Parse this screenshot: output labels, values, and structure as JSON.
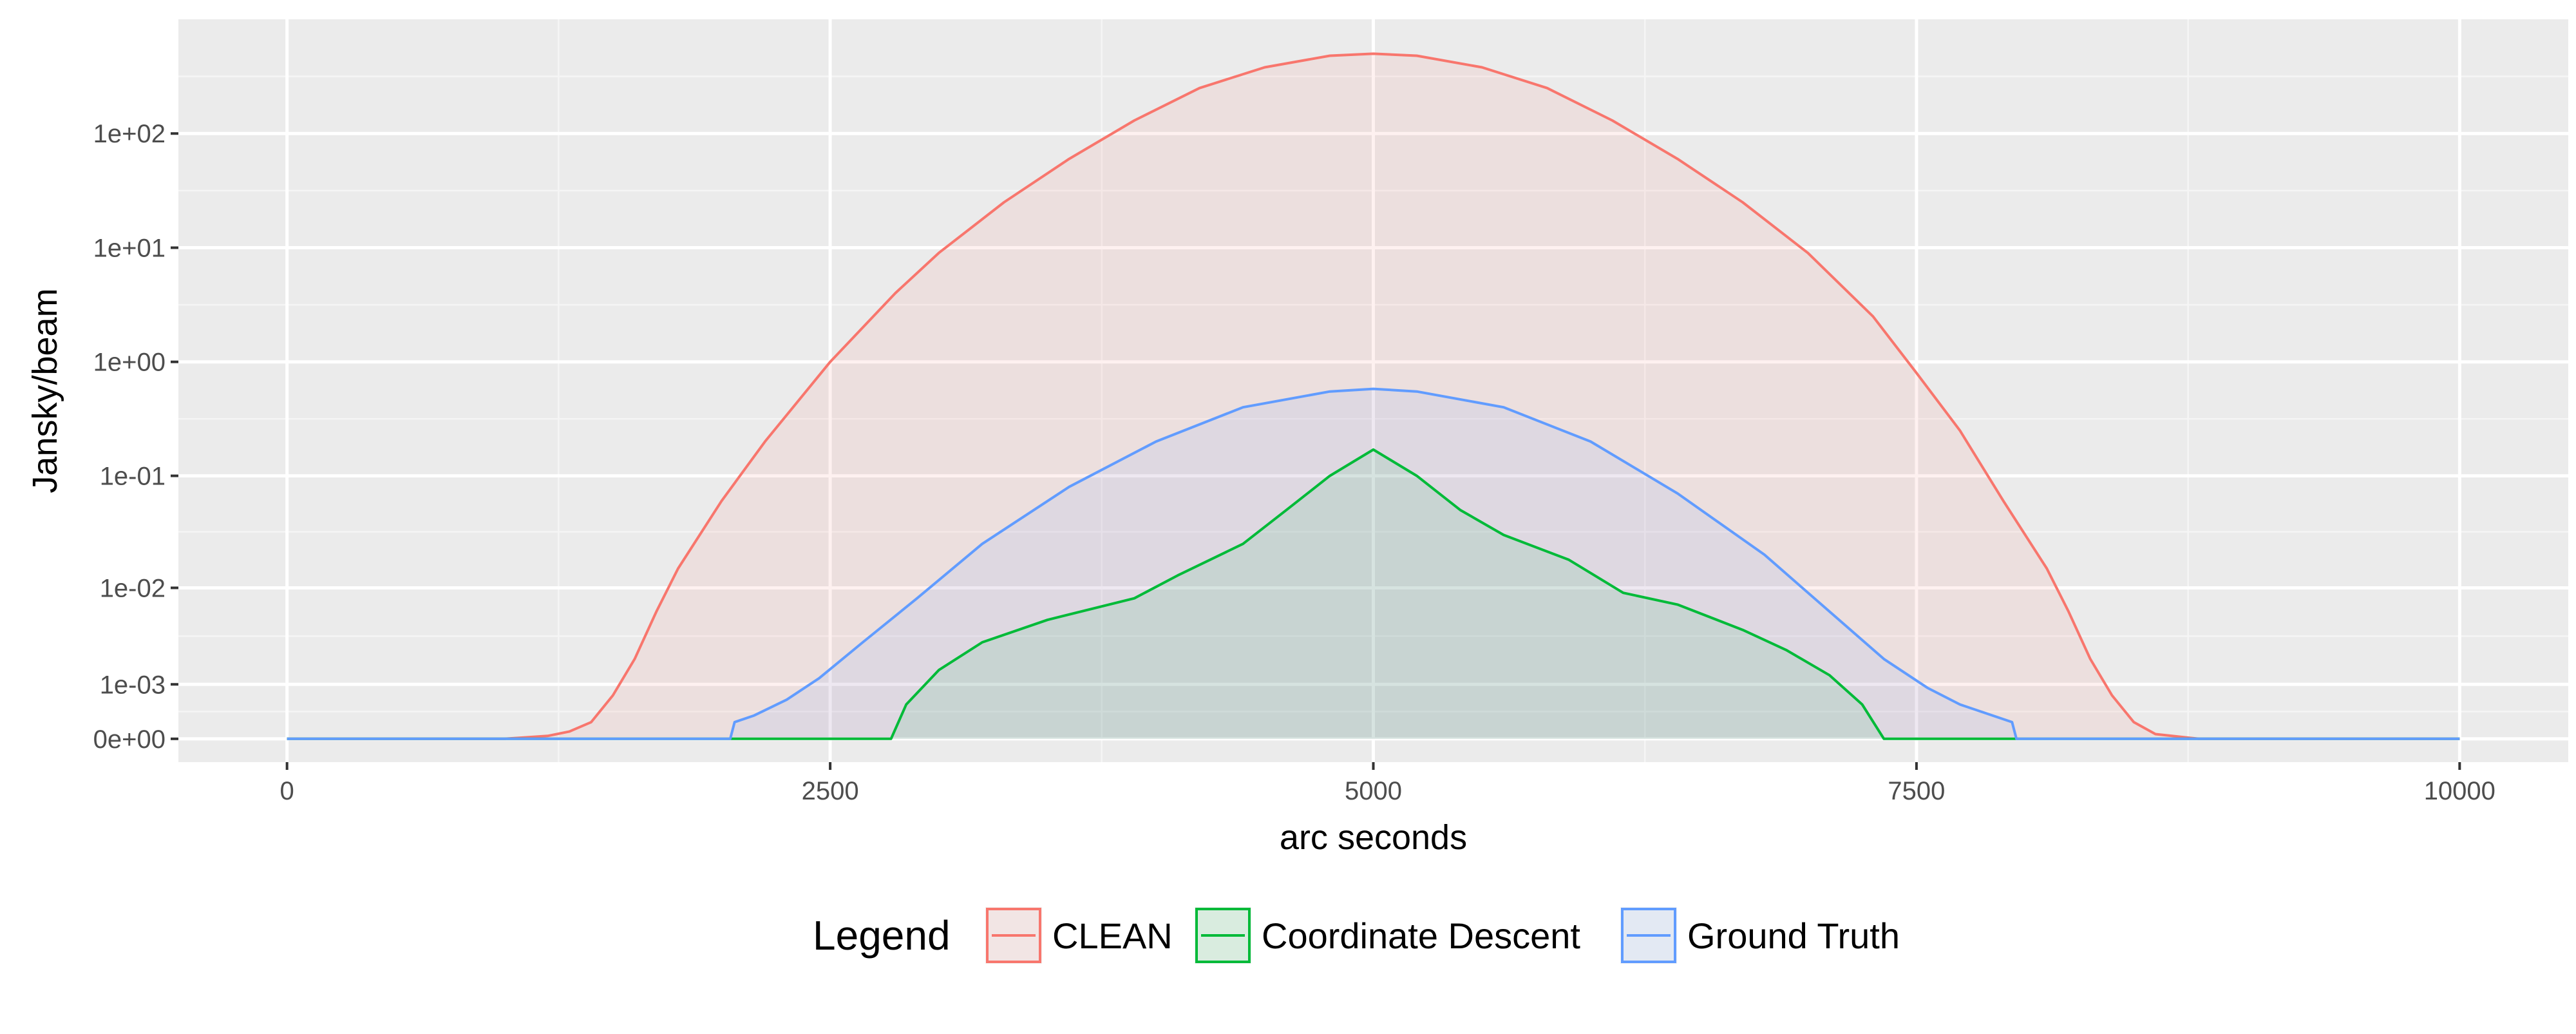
{
  "chart_data": {
    "type": "area",
    "title": "",
    "xlabel": "arc seconds",
    "ylabel": "Jansky/beam",
    "xlim": [
      -500,
      10500
    ],
    "x_ticks": [
      0,
      2500,
      5000,
      7500,
      10000
    ],
    "x_tick_labels": [
      "0",
      "2500",
      "5000",
      "7500",
      "10000"
    ],
    "y_scale": "pseudo-log",
    "y_ticks": [
      0,
      0.001,
      0.01,
      0.1,
      1,
      10,
      100
    ],
    "y_tick_labels": [
      "0e+00",
      "1e-03",
      "1e-02",
      "1e-01",
      "1e+00",
      "1e+01",
      "1e+02"
    ],
    "ylim": [
      -0.0003,
      1000
    ],
    "grid": true,
    "legend": {
      "title": "Legend",
      "placement": "bottom",
      "entries": [
        "CLEAN",
        "Coordinate Descent",
        "Ground Truth"
      ]
    },
    "series": [
      {
        "name": "CLEAN",
        "color": "#F8766D",
        "x": [
          0,
          1000,
          1200,
          1300,
          1400,
          1500,
          1600,
          1700,
          1800,
          2000,
          2200,
          2500,
          2800,
          3000,
          3300,
          3600,
          3900,
          4200,
          4500,
          4800,
          5000,
          5200,
          5500,
          5800,
          6100,
          6400,
          6700,
          7000,
          7300,
          7500,
          7700,
          7900,
          8100,
          8200,
          8300,
          8400,
          8500,
          8600,
          8800,
          10000
        ],
        "values": [
          0,
          0,
          3e-05,
          8e-05,
          0.0002,
          0.0007,
          0.002,
          0.006,
          0.015,
          0.06,
          0.2,
          1,
          4,
          9,
          25,
          60,
          130,
          250,
          380,
          480,
          500,
          480,
          380,
          250,
          130,
          60,
          25,
          9,
          2.5,
          0.8,
          0.25,
          0.06,
          0.015,
          0.006,
          0.002,
          0.0007,
          0.0002,
          5e-05,
          0,
          0
        ]
      },
      {
        "name": "Coordinate Descent",
        "color": "#00BA38",
        "x": [
          0,
          2750,
          2780,
          2850,
          3000,
          3200,
          3500,
          3900,
          4100,
          4400,
          4600,
          4800,
          5000,
          5200,
          5400,
          5600,
          5900,
          6150,
          6400,
          6700,
          6900,
          7100,
          7250,
          7350,
          10000
        ],
        "values": [
          0,
          0,
          0,
          0.0005,
          0.0015,
          0.003,
          0.005,
          0.008,
          0.013,
          0.025,
          0.05,
          0.1,
          0.17,
          0.1,
          0.05,
          0.03,
          0.018,
          0.009,
          0.007,
          0.004,
          0.0025,
          0.0013,
          0.0005,
          0,
          0
        ]
      },
      {
        "name": "Ground Truth",
        "color": "#619CFF",
        "x": [
          0,
          2040,
          2060,
          2150,
          2300,
          2450,
          2650,
          2900,
          3200,
          3600,
          4000,
          4400,
          4800,
          5000,
          5200,
          5600,
          6000,
          6400,
          6800,
          7100,
          7350,
          7550,
          7700,
          7850,
          7940,
          7960,
          10000
        ],
        "values": [
          0,
          0,
          0.0002,
          0.0003,
          0.0006,
          0.0012,
          0.003,
          0.008,
          0.025,
          0.08,
          0.2,
          0.4,
          0.55,
          0.58,
          0.55,
          0.4,
          0.2,
          0.07,
          0.02,
          0.006,
          0.002,
          0.0009,
          0.0005,
          0.0003,
          0.0002,
          0,
          0
        ]
      }
    ]
  }
}
